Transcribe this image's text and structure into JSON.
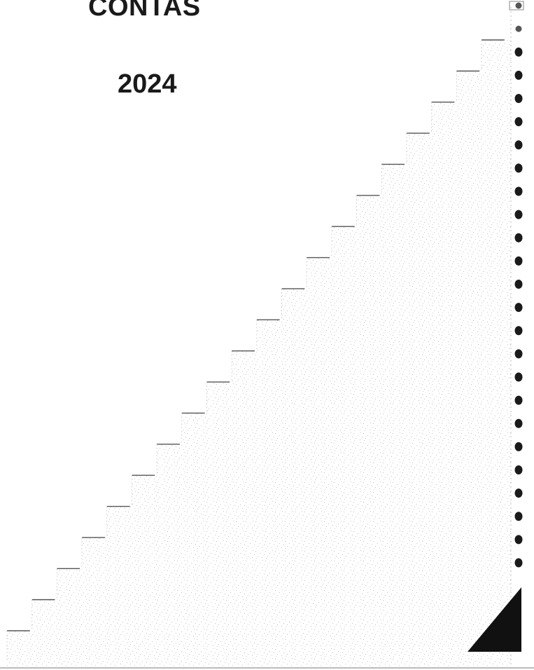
{
  "document": {
    "title": "CONTAS",
    "year": "2024"
  },
  "colors": {
    "ink": "#1a1a1a",
    "speckle": "#b8b8b8",
    "step_line": "#555555"
  },
  "decorations": {
    "binding_holes": 25,
    "staircase_steps": 20,
    "corner_triangle": "filled"
  }
}
